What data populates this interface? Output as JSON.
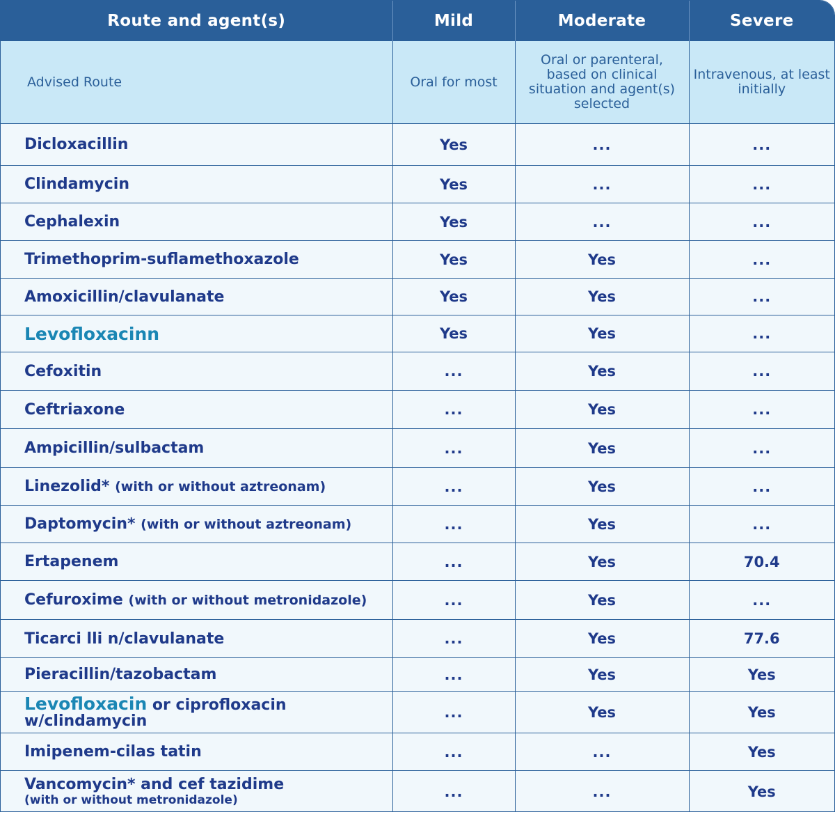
{
  "header": {
    "col1": "Route and agent(s)",
    "col2": "Mild",
    "col3": "Moderate",
    "col4": "Severe"
  },
  "route": {
    "label": "Advised Route",
    "mild": "Oral for most",
    "moderate": "Oral or parenteral, based on clinical situation and agent(s) selected",
    "severe": "Intravenous, at least initially"
  },
  "rows": [
    {
      "agent": "Dicloxacillin",
      "mild": "Yes",
      "moderate": "...",
      "severe": "..."
    },
    {
      "agent": "Clindamycin",
      "mild": "Yes",
      "moderate": "...",
      "severe": "..."
    },
    {
      "agent": "Cephalexin",
      "mild": "Yes",
      "moderate": "...",
      "severe": "..."
    },
    {
      "agent": "Trimethoprim-suflamethoxazole",
      "mild": "Yes",
      "moderate": "Yes",
      "severe": "..."
    },
    {
      "agent": "Amoxicillin/clavulanate",
      "mild": "Yes",
      "moderate": "Yes",
      "severe": "..."
    },
    {
      "agent": "Levofloxacinn",
      "mild": "Yes",
      "moderate": "Yes",
      "severe": "..."
    },
    {
      "agent": "Cefoxitin",
      "mild": "...",
      "moderate": "Yes",
      "severe": "..."
    },
    {
      "agent": "Ceftriaxone",
      "mild": "...",
      "moderate": "Yes",
      "severe": "..."
    },
    {
      "agent": "Ampicillin/sulbactam",
      "mild": "...",
      "moderate": "Yes",
      "severe": "..."
    },
    {
      "agent": "Linezolid*",
      "note": "(with or without aztreonam)",
      "mild": "...",
      "moderate": "Yes",
      "severe": "..."
    },
    {
      "agent": "Daptomycin*",
      "note": "(with or without aztreonam)",
      "mild": "...",
      "moderate": "Yes",
      "severe": "..."
    },
    {
      "agent": "Ertapenem",
      "mild": "...",
      "moderate": "Yes",
      "severe": "70.4"
    },
    {
      "agent": "Cefuroxime",
      "note": "(with or without metronidazole)",
      "mild": "...",
      "moderate": "Yes",
      "severe": "..."
    },
    {
      "agent": "Ticarci lli n/clavulanate",
      "mild": "...",
      "moderate": "Yes",
      "severe": "77.6"
    },
    {
      "agent": "Pieracillin/tazobactam",
      "mild": "...",
      "moderate": "Yes",
      "severe": "Yes"
    },
    {
      "agent_hl": "Levofloxacin",
      "agent_rest": " or ciprofloxacin",
      "agent_line2": "w/clindamycin",
      "mild": "...",
      "moderate": "Yes",
      "severe": "Yes"
    },
    {
      "agent": "Imipenem-cilas tatin",
      "mild": "...",
      "moderate": "...",
      "severe": "Yes"
    },
    {
      "agent": "Vancomycin* and cef tazidime",
      "note": "(with or without metronidazole)",
      "mild": "...",
      "moderate": "...",
      "severe": "Yes"
    }
  ],
  "colors": {
    "header_bg": "#2a5f99",
    "route_bg": "#c9e8f7",
    "row_bg": "#f1f8fc",
    "text_dark": "#1f3a8a",
    "text_highlight": "#1a86b4"
  }
}
